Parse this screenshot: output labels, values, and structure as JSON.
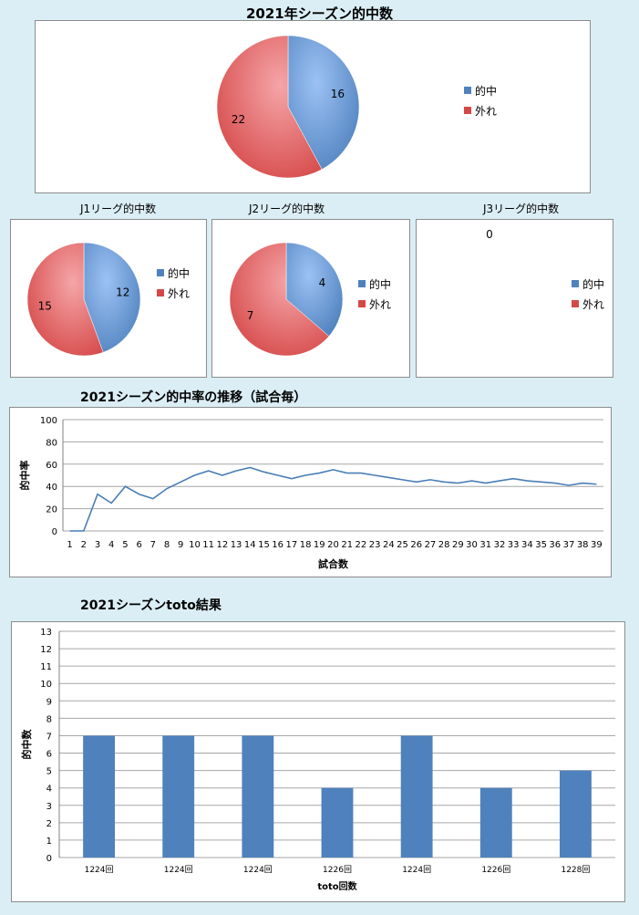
{
  "colors": {
    "hit": "#4f81bd",
    "hit_light": "#9cc2f5",
    "miss": "#d64848",
    "miss_light": "#f5a5a8",
    "line": "#4a7db5",
    "bar": "#4f81bd",
    "grid": "#a6a6a6"
  },
  "chart_data": [
    {
      "type": "pie",
      "title": "2021年シーズン的中数",
      "labels": [
        "的中",
        "外れ"
      ],
      "values": [
        16,
        22
      ],
      "value_labels": [
        "16",
        "22"
      ],
      "legend_position": "right"
    },
    {
      "type": "pie",
      "title": "J1リーグ的中数",
      "labels": [
        "的中",
        "外れ"
      ],
      "values": [
        12,
        15
      ],
      "value_labels": [
        "12",
        "15"
      ],
      "legend_position": "right"
    },
    {
      "type": "pie",
      "title": "J2リーグ的中数",
      "labels": [
        "的中",
        "外れ"
      ],
      "values": [
        4,
        7
      ],
      "value_labels": [
        "4",
        "7"
      ],
      "legend_position": "right"
    },
    {
      "type": "pie",
      "title": "J3リーグ的中数",
      "labels": [
        "的中",
        "外れ"
      ],
      "values": [
        0,
        0
      ],
      "value_labels": [
        "0"
      ],
      "legend_position": "right"
    },
    {
      "type": "line",
      "title": "2021シーズン的中率の推移（試合毎）",
      "xlabel": "試合数",
      "ylabel": "的中率",
      "ylim": [
        0,
        100
      ],
      "yticks": [
        0,
        20,
        40,
        60,
        80,
        100
      ],
      "x": [
        1,
        2,
        3,
        4,
        5,
        6,
        7,
        8,
        9,
        10,
        11,
        12,
        13,
        14,
        15,
        16,
        17,
        18,
        19,
        20,
        21,
        22,
        23,
        24,
        25,
        26,
        27,
        28,
        29,
        30,
        31,
        32,
        33,
        34,
        35,
        36,
        37,
        38,
        39
      ],
      "series": [
        {
          "values": [
            0,
            0,
            33,
            25,
            40,
            33,
            29,
            38,
            44,
            50,
            54,
            50,
            54,
            57,
            53,
            50,
            47,
            50,
            52,
            55,
            52,
            52,
            50,
            48,
            46,
            44,
            46,
            44,
            43,
            45,
            43,
            45,
            47,
            45,
            44,
            43,
            41,
            43,
            42
          ]
        }
      ],
      "grid": true
    },
    {
      "type": "bar",
      "title": "2021シーズンtoto結果",
      "xlabel": "toto回数",
      "ylabel": "的中数",
      "ylim": [
        0,
        13
      ],
      "yticks": [
        0,
        1,
        2,
        3,
        4,
        5,
        6,
        7,
        8,
        9,
        10,
        11,
        12,
        13
      ],
      "categories": [
        "1224回",
        "1224回",
        "1224回",
        "1226回",
        "1224回",
        "1226回",
        "1228回"
      ],
      "values": [
        7,
        7,
        7,
        4,
        7,
        4,
        5
      ],
      "grid": true
    }
  ]
}
